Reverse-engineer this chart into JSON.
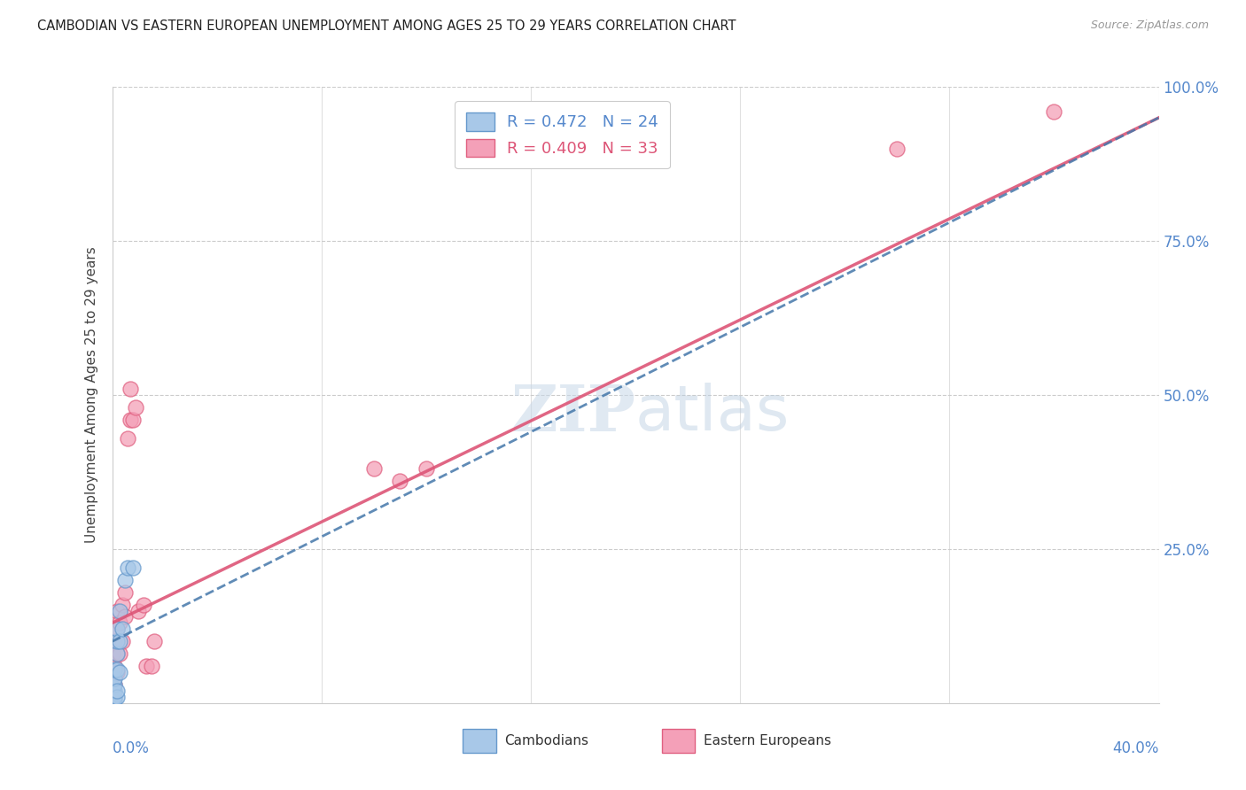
{
  "title": "CAMBODIAN VS EASTERN EUROPEAN UNEMPLOYMENT AMONG AGES 25 TO 29 YEARS CORRELATION CHART",
  "source": "Source: ZipAtlas.com",
  "ylabel": "Unemployment Among Ages 25 to 29 years",
  "xlim": [
    0,
    0.4
  ],
  "ylim": [
    0,
    1.0
  ],
  "yticks": [
    0.0,
    0.25,
    0.5,
    0.75,
    1.0
  ],
  "ytick_labels": [
    "",
    "25.0%",
    "50.0%",
    "75.0%",
    "100.0%"
  ],
  "watermark_zip": "ZIP",
  "watermark_atlas": "atlas",
  "legend_blue_r": "R = 0.472",
  "legend_blue_n": "N = 24",
  "legend_pink_r": "R = 0.409",
  "legend_pink_n": "N = 33",
  "label_cambodians": "Cambodians",
  "label_eastern": "Eastern Europeans",
  "blue_scatter_color": "#a8c8e8",
  "blue_scatter_edge": "#6699cc",
  "pink_scatter_color": "#f4a0b8",
  "pink_scatter_edge": "#e06080",
  "blue_line_color": "#4477aa",
  "pink_line_color": "#dd5577",
  "background_color": "#ffffff",
  "grid_color": "#cccccc",
  "cambodian_x": [
    0.0,
    0.0,
    0.0,
    0.0,
    0.0,
    0.001,
    0.001,
    0.001,
    0.001,
    0.001,
    0.001,
    0.002,
    0.002,
    0.002,
    0.002,
    0.002,
    0.002,
    0.003,
    0.003,
    0.003,
    0.004,
    0.005,
    0.006,
    0.008
  ],
  "cambodian_y": [
    0.005,
    0.01,
    0.015,
    0.02,
    0.025,
    0.005,
    0.01,
    0.02,
    0.03,
    0.04,
    0.055,
    0.01,
    0.02,
    0.055,
    0.08,
    0.1,
    0.12,
    0.05,
    0.1,
    0.15,
    0.12,
    0.2,
    0.22,
    0.22
  ],
  "eastern_x": [
    0.0,
    0.0,
    0.0,
    0.0,
    0.0,
    0.001,
    0.001,
    0.001,
    0.002,
    0.002,
    0.002,
    0.002,
    0.003,
    0.003,
    0.004,
    0.004,
    0.005,
    0.005,
    0.006,
    0.007,
    0.007,
    0.008,
    0.009,
    0.01,
    0.012,
    0.013,
    0.015,
    0.016,
    0.3,
    0.36,
    0.1,
    0.11,
    0.12
  ],
  "eastern_y": [
    0.01,
    0.02,
    0.03,
    0.05,
    0.08,
    0.03,
    0.06,
    0.1,
    0.05,
    0.08,
    0.12,
    0.15,
    0.08,
    0.13,
    0.1,
    0.16,
    0.14,
    0.18,
    0.43,
    0.46,
    0.51,
    0.46,
    0.48,
    0.15,
    0.16,
    0.06,
    0.06,
    0.1,
    0.9,
    0.96,
    0.38,
    0.36,
    0.38
  ],
  "pink_line_x0": 0.0,
  "pink_line_y0": 0.13,
  "pink_line_x1": 0.4,
  "pink_line_y1": 0.95,
  "blue_line_x0": 0.0,
  "blue_line_y0": 0.1,
  "blue_line_x1": 0.4,
  "blue_line_y1": 0.95
}
